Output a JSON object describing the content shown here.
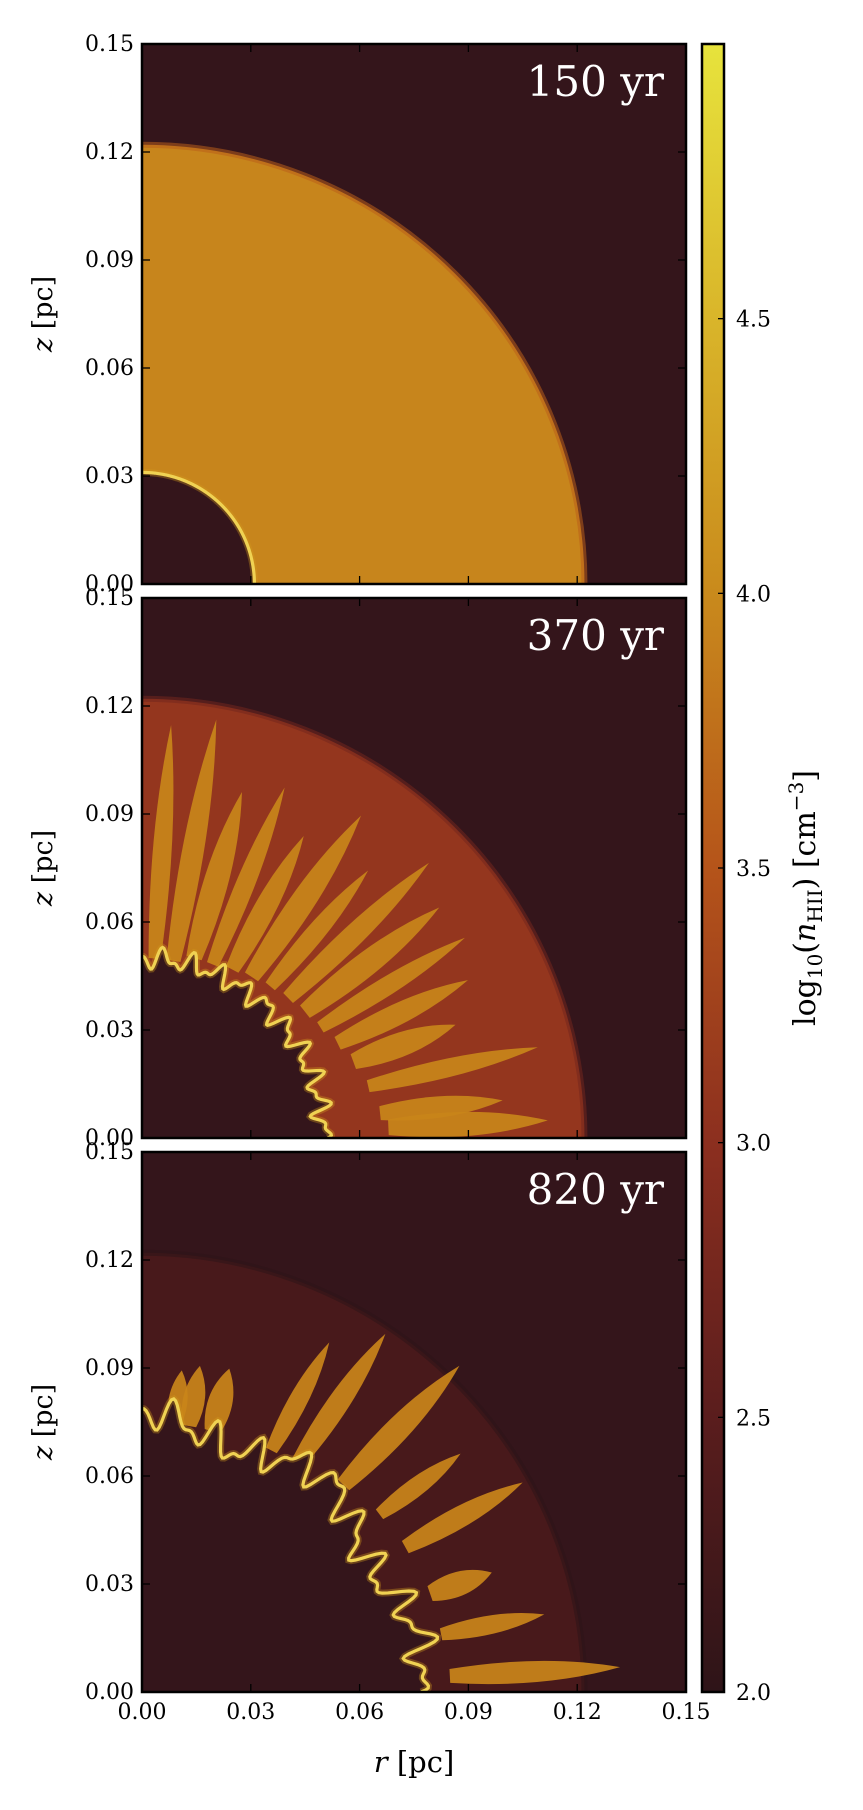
{
  "chart_data": {
    "type": "heatmap",
    "figure": "three-panel density map",
    "panels": [
      {
        "label": "150 yr",
        "ylabel": "z [pc]",
        "xlim": [
          0,
          0.15
        ],
        "ylim": [
          0,
          0.15
        ],
        "shell_outer_radius_pc": 0.122,
        "ionization_front_radius_pc": 0.031,
        "shell_log_density": 3.95,
        "fingers": []
      },
      {
        "label": "370 yr",
        "ylabel": "z [pc]",
        "xlim": [
          0,
          0.15
        ],
        "ylim": [
          0,
          0.15
        ],
        "shell_outer_radius_pc": 0.122,
        "ionization_front_radius_pc": 0.05,
        "shell_log_density": 3.1,
        "fingers": [
          {
            "angle_deg": 86,
            "r0_pc": 0.05,
            "r1_pc": 0.115
          },
          {
            "angle_deg": 80,
            "r0_pc": 0.05,
            "r1_pc": 0.118
          },
          {
            "angle_deg": 74,
            "r0_pc": 0.052,
            "r1_pc": 0.1
          },
          {
            "angle_deg": 68,
            "r0_pc": 0.052,
            "r1_pc": 0.105
          },
          {
            "angle_deg": 62,
            "r0_pc": 0.053,
            "r1_pc": 0.095
          },
          {
            "angle_deg": 56,
            "r0_pc": 0.054,
            "r1_pc": 0.108
          },
          {
            "angle_deg": 50,
            "r0_pc": 0.055,
            "r1_pc": 0.097
          },
          {
            "angle_deg": 44,
            "r0_pc": 0.056,
            "r1_pc": 0.11
          },
          {
            "angle_deg": 38,
            "r0_pc": 0.057,
            "r1_pc": 0.104
          },
          {
            "angle_deg": 32,
            "r0_pc": 0.058,
            "r1_pc": 0.105
          },
          {
            "angle_deg": 26,
            "r0_pc": 0.06,
            "r1_pc": 0.1
          },
          {
            "angle_deg": 20,
            "r0_pc": 0.062,
            "r1_pc": 0.092
          },
          {
            "angle_deg": 13,
            "r0_pc": 0.064,
            "r1_pc": 0.112
          },
          {
            "angle_deg": 6,
            "r0_pc": 0.066,
            "r1_pc": 0.1
          },
          {
            "angle_deg": 2.5,
            "r0_pc": 0.068,
            "r1_pc": 0.112
          }
        ]
      },
      {
        "label": "820 yr",
        "ylabel": "z [pc]",
        "xlabel": "r [pc]",
        "xlim": [
          0,
          0.15
        ],
        "ylim": [
          0,
          0.15
        ],
        "shell_outer_radius_pc": 0.122,
        "ionization_front_radius_pc": 0.075,
        "shell_log_density": 2.3,
        "fingers": [
          {
            "angle_deg": 83,
            "r0_pc": 0.075,
            "r1_pc": 0.09
          },
          {
            "angle_deg": 80,
            "r0_pc": 0.075,
            "r1_pc": 0.092
          },
          {
            "angle_deg": 75,
            "r0_pc": 0.075,
            "r1_pc": 0.093
          },
          {
            "angle_deg": 62,
            "r0_pc": 0.076,
            "r1_pc": 0.11
          },
          {
            "angle_deg": 56,
            "r0_pc": 0.077,
            "r1_pc": 0.12
          },
          {
            "angle_deg": 46,
            "r0_pc": 0.08,
            "r1_pc": 0.126
          },
          {
            "angle_deg": 37,
            "r0_pc": 0.082,
            "r1_pc": 0.11
          },
          {
            "angle_deg": 29,
            "r0_pc": 0.083,
            "r1_pc": 0.12
          },
          {
            "angle_deg": 19,
            "r0_pc": 0.084,
            "r1_pc": 0.102
          },
          {
            "angle_deg": 11,
            "r0_pc": 0.084,
            "r1_pc": 0.113
          },
          {
            "angle_deg": 3,
            "r0_pc": 0.085,
            "r1_pc": 0.132
          }
        ]
      }
    ],
    "x_ticks": [
      "0.00",
      "0.03",
      "0.06",
      "0.09",
      "0.12",
      "0.15"
    ],
    "y_ticks": [
      "0.00",
      "0.03",
      "0.06",
      "0.09",
      "0.12",
      "0.15"
    ],
    "colorbar": {
      "label": "log10(nHII) [cm−3]",
      "label_main": "log",
      "label_sub": "10",
      "label_open": "(",
      "label_n": "n",
      "label_n_sub": "HII",
      "label_close": ") [cm",
      "label_exp": "−3",
      "label_end": "]",
      "range": [
        2.0,
        5.0
      ],
      "ticks": [
        "2.0",
        "2.5",
        "3.0",
        "3.5",
        "4.0",
        "4.5"
      ],
      "colors": [
        "#2e1418",
        "#5a1d1d",
        "#8c2f1f",
        "#b5541a",
        "#c98a1c",
        "#d9b52a",
        "#e7e33c"
      ]
    },
    "colors": {
      "background": "#34151b",
      "ionization_front": "#fff070",
      "finger": "#c8841a"
    }
  }
}
